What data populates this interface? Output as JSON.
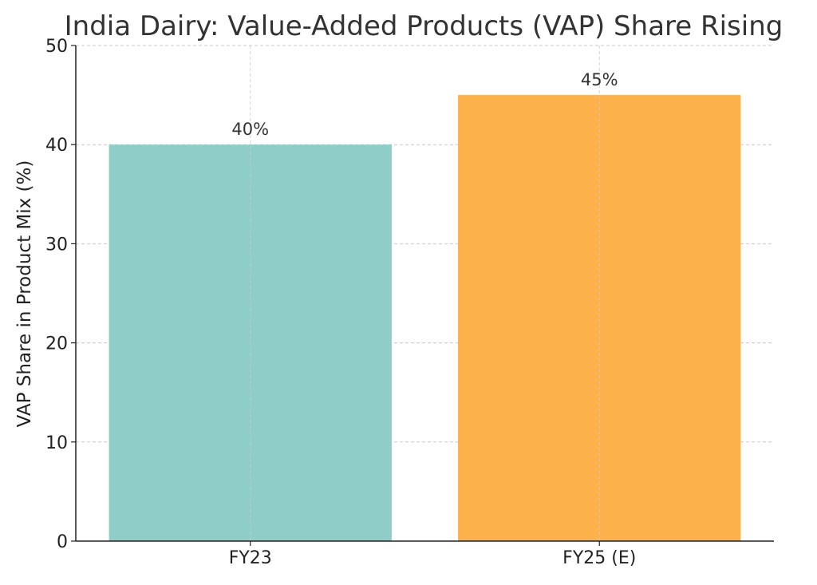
{
  "chart_data": {
    "type": "bar",
    "title": "India Dairy: Value-Added Products (VAP) Share Rising",
    "xlabel": "",
    "ylabel": "VAP Share in Product Mix (%)",
    "categories": [
      "FY23",
      "FY25 (E)"
    ],
    "values": [
      40,
      45
    ],
    "data_labels": [
      "40%",
      "45%"
    ],
    "colors": [
      "#8fcec8",
      "#fdb14b"
    ],
    "ylim": [
      0,
      50
    ],
    "yticks": [
      0,
      10,
      20,
      30,
      40,
      50
    ],
    "grid": true,
    "legend": "none"
  }
}
